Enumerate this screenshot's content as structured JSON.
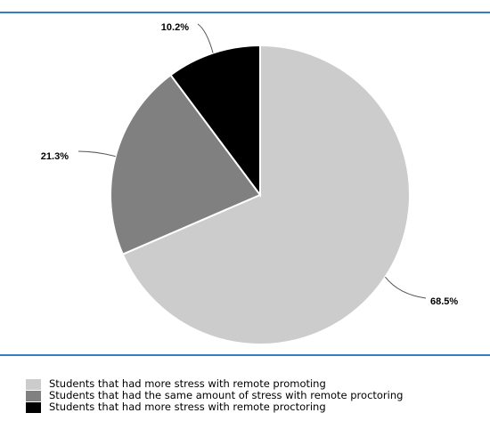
{
  "frame": {
    "rule_color": "#2f7fc1"
  },
  "chart_data": {
    "type": "pie",
    "title": "",
    "start_angle_deg": 0,
    "direction": "clockwise",
    "slices": [
      {
        "label": "Students that had more stress with remote promoting",
        "value": 68.5,
        "display": "68.5%",
        "color": "#cccccc"
      },
      {
        "label": "Students that had the same amount of stress with remote proctoring",
        "value": 21.3,
        "display": "21.3%",
        "color": "#808080"
      },
      {
        "label": "Students that had more stress with remote proctoring",
        "value": 10.2,
        "display": "10.2%",
        "color": "#000000"
      }
    ],
    "legend_position": "bottom"
  }
}
